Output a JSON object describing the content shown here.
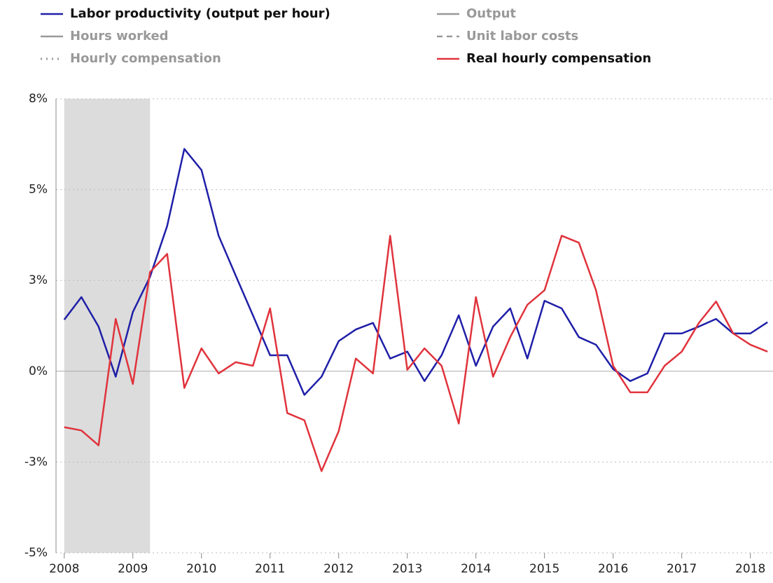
{
  "chart_data": {
    "type": "line",
    "x": [
      2008,
      2008.25,
      2008.5,
      2008.75,
      2009,
      2009.25,
      2009.5,
      2009.75,
      2010,
      2010.25,
      2010.5,
      2010.75,
      2011,
      2011.25,
      2011.5,
      2011.75,
      2012,
      2012.25,
      2012.5,
      2012.75,
      2013,
      2013.25,
      2013.5,
      2013.75,
      2014,
      2014.25,
      2014.5,
      2014.75,
      2015,
      2015.25,
      2015.5,
      2015.75,
      2016,
      2016.25,
      2016.5,
      2016.75,
      2017,
      2017.25,
      2017.5,
      2017.75,
      2018,
      2018.25
    ],
    "series": [
      {
        "name": "Labor productivity (output per hour)",
        "color": "#1f1fa8",
        "values": [
          1.42,
          2.04,
          1.23,
          -0.15,
          1.63,
          2.6,
          4.0,
          6.12,
          5.54,
          3.73,
          2.63,
          1.54,
          0.44,
          0.44,
          -0.65,
          -0.15,
          0.83,
          1.15,
          1.33,
          0.35,
          0.54,
          -0.27,
          0.44,
          1.54,
          0.15,
          1.23,
          1.73,
          0.35,
          1.94,
          1.73,
          0.94,
          0.73,
          0.06,
          -0.27,
          -0.06,
          1.04,
          1.04,
          1.23,
          1.44,
          1.04,
          1.04,
          1.35
        ]
      },
      {
        "name": "Real hourly compensation",
        "color": "#e0333c",
        "values": [
          -1.54,
          -1.63,
          -2.04,
          1.44,
          -0.35,
          2.73,
          3.23,
          -0.46,
          0.63,
          -0.06,
          0.25,
          0.15,
          1.73,
          -1.15,
          -1.35,
          -2.75,
          -1.65,
          0.35,
          -0.06,
          3.73,
          0.04,
          0.63,
          0.15,
          -1.44,
          2.04,
          -0.15,
          0.94,
          1.83,
          2.23,
          3.73,
          3.54,
          2.23,
          0.15,
          -0.58,
          -0.58,
          0.15,
          0.54,
          1.33,
          1.92,
          1.04,
          0.73,
          0.54
        ]
      }
    ],
    "inactive_series": [
      {
        "name": "Output",
        "color": "#999999",
        "dash": "solid"
      },
      {
        "name": "Hours worked",
        "color": "#999999",
        "dash": "solid"
      },
      {
        "name": "Unit labor costs",
        "color": "#999999",
        "dash": "dashed"
      },
      {
        "name": "Hourly compensation",
        "color": "#999999",
        "dash": "dotted"
      }
    ],
    "shade": [
      2008,
      2009.25
    ],
    "xlim": [
      2007.88,
      2018.33
    ],
    "xticks": [
      2008,
      2009,
      2010,
      2011,
      2012,
      2013,
      2014,
      2015,
      2016,
      2017,
      2018
    ],
    "ylim": [
      -5,
      7.5
    ],
    "yticks": [
      {
        "value": -5,
        "label": "-5%"
      },
      {
        "value": -2.5,
        "label": "-3%"
      },
      {
        "value": 0,
        "label": "0%"
      },
      {
        "value": 2.5,
        "label": "3%"
      },
      {
        "value": 5,
        "label": "5%"
      },
      {
        "value": 7.5,
        "label": "8%"
      }
    ],
    "grid": true
  }
}
